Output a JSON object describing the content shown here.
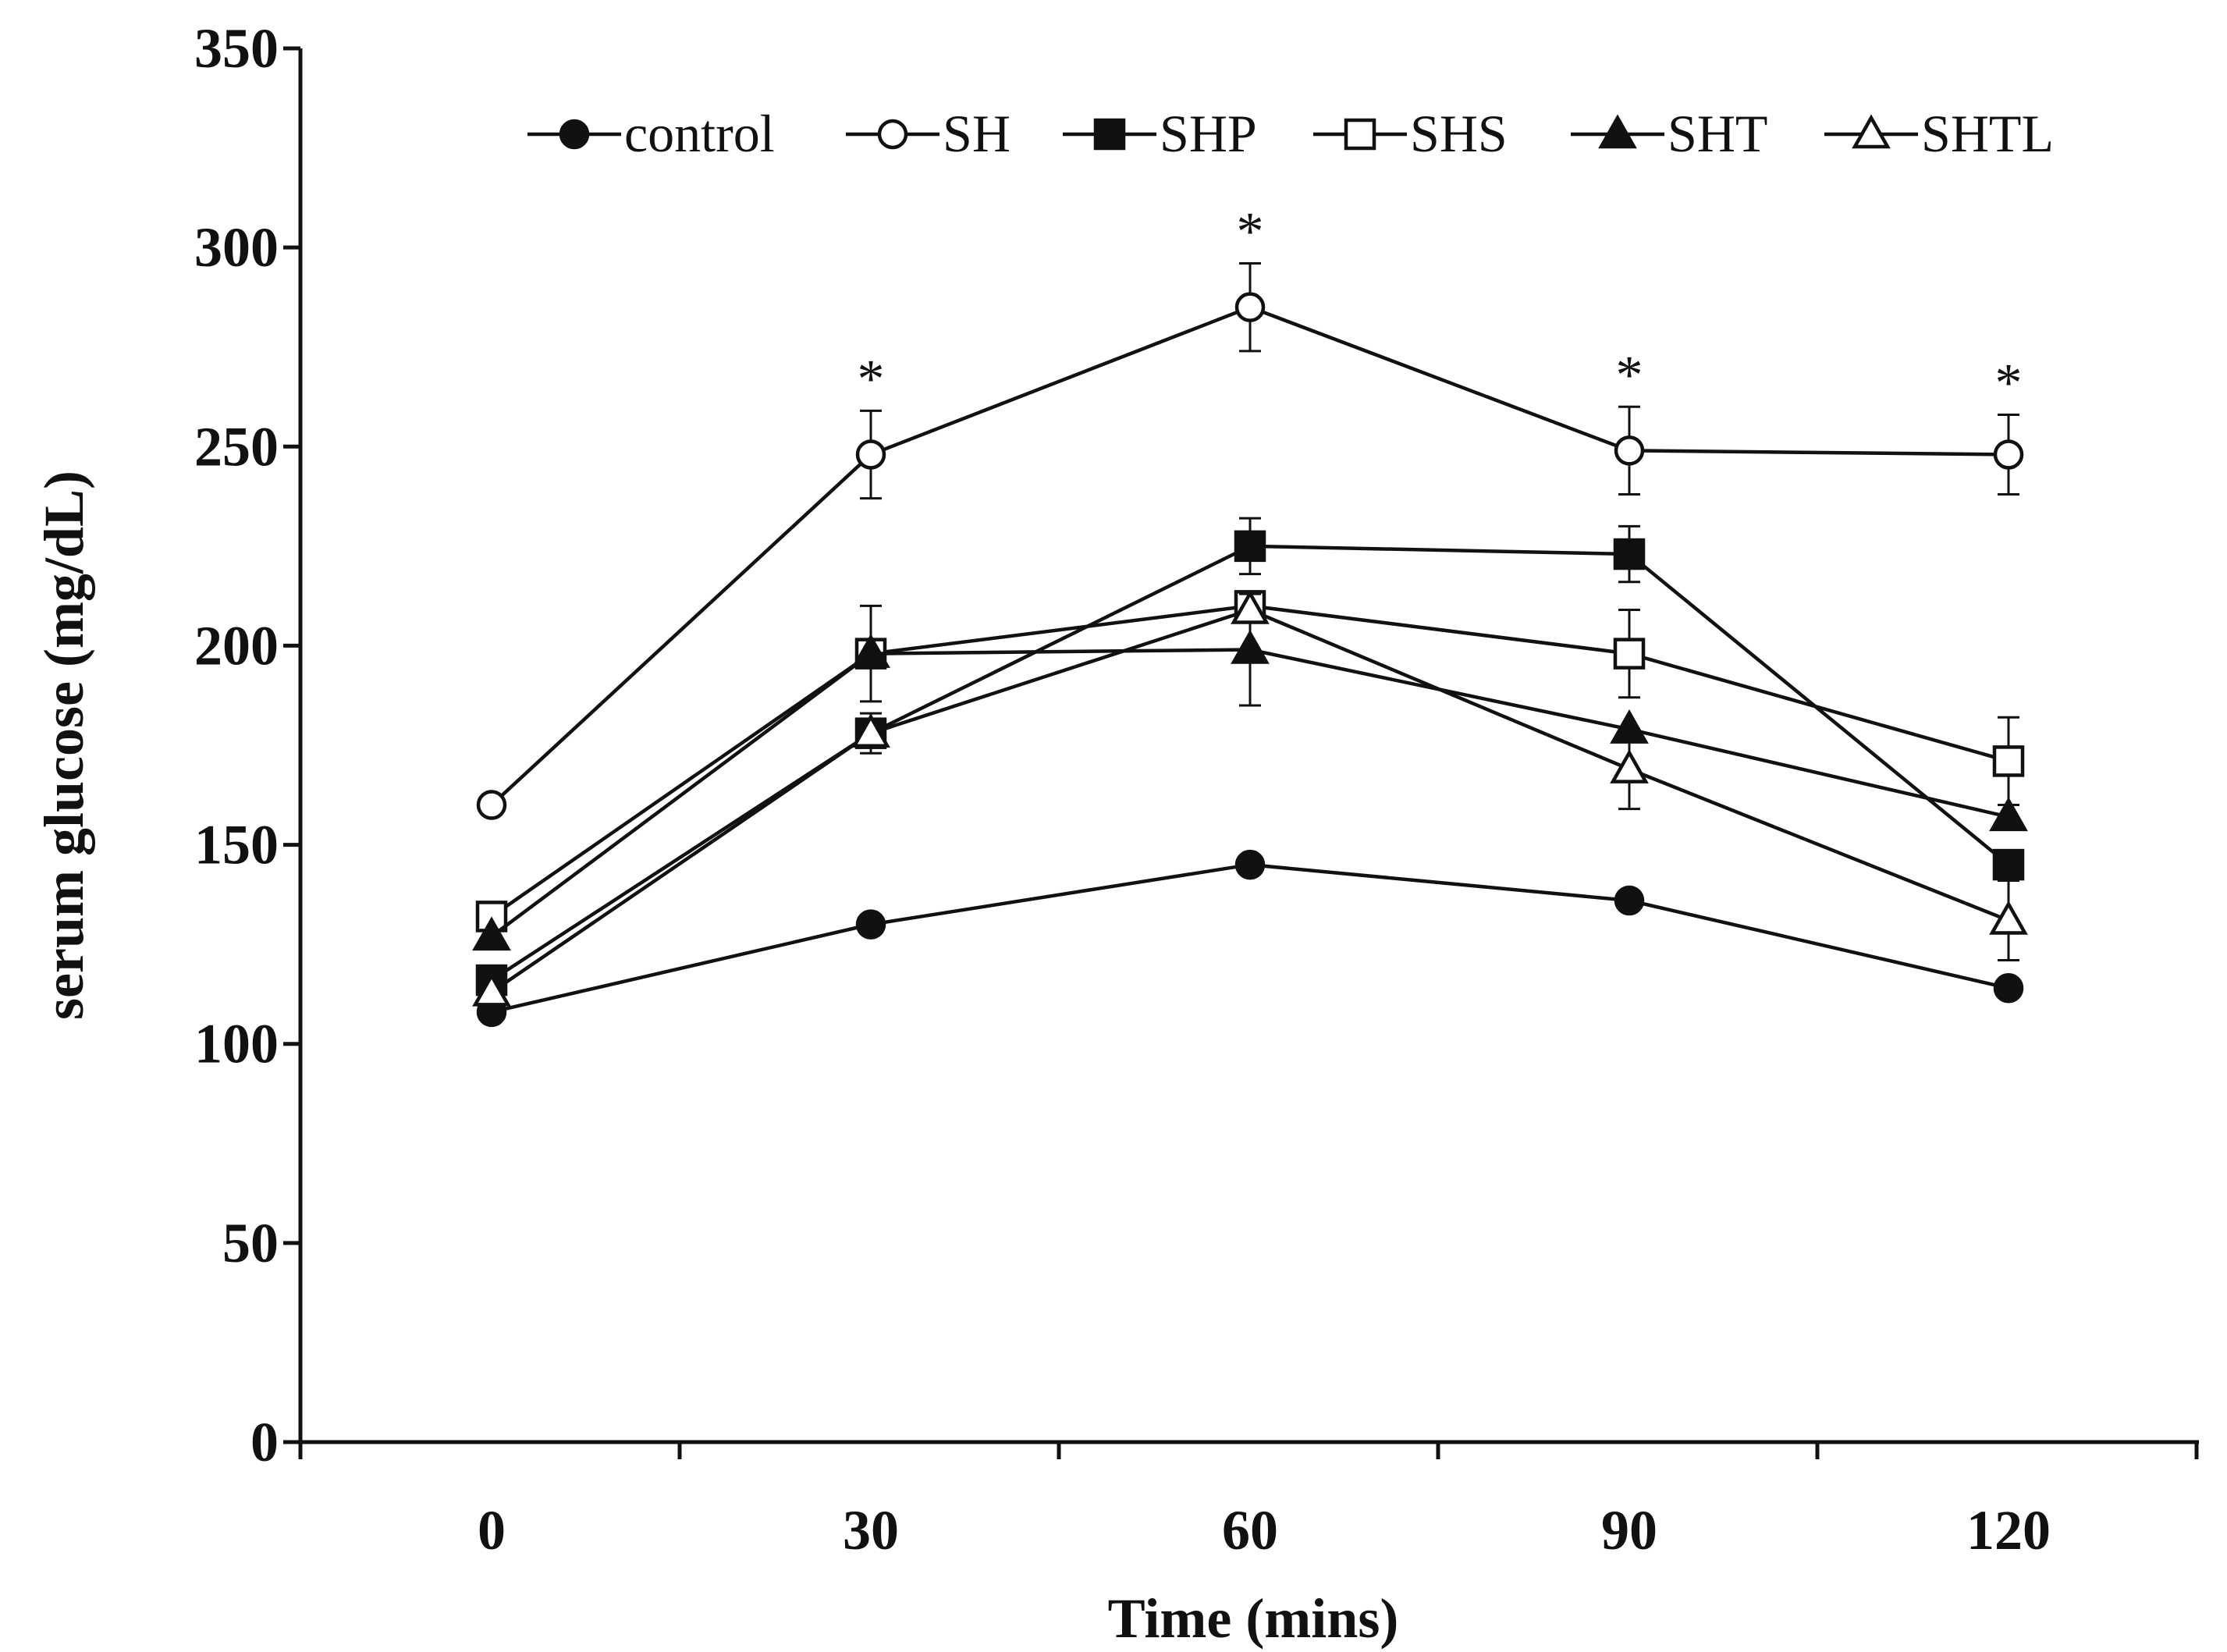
{
  "chart_data": {
    "type": "line",
    "title": "",
    "xlabel": "Time (mins)",
    "ylabel": "serum  glucose (mg/dL)",
    "categories": [
      "0",
      "30",
      "60",
      "90",
      "120"
    ],
    "x": [
      0,
      30,
      60,
      90,
      120
    ],
    "ylim": [
      0,
      350
    ],
    "yticks": [
      "0",
      "50",
      "100",
      "150",
      "200",
      "250",
      "300",
      "350"
    ],
    "legend_position": "top",
    "significance_marker": "*",
    "significance_at": [
      30,
      60,
      90,
      120
    ],
    "series": [
      {
        "name": "control",
        "marker": "filled-circle",
        "values": [
          108,
          130,
          145,
          136,
          114
        ],
        "errors": [
          0,
          0,
          0,
          0,
          0
        ]
      },
      {
        "name": "SH",
        "marker": "open-circle",
        "values": [
          160,
          248,
          285,
          249,
          248
        ],
        "errors": [
          0,
          11,
          11,
          11,
          10
        ]
      },
      {
        "name": "SHP",
        "marker": "filled-square",
        "values": [
          116,
          178,
          225,
          223,
          145
        ],
        "errors": [
          0,
          5,
          7,
          7,
          0
        ]
      },
      {
        "name": "SHS",
        "marker": "open-square",
        "values": [
          132,
          198,
          210,
          198,
          171
        ],
        "errors": [
          0,
          12,
          0,
          11,
          11
        ]
      },
      {
        "name": "SHT",
        "marker": "filled-triangle",
        "values": [
          127,
          198,
          199,
          179,
          157
        ],
        "errors": [
          0,
          0,
          14,
          0,
          0
        ]
      },
      {
        "name": "SHTL",
        "marker": "open-triangle",
        "values": [
          113,
          178,
          209,
          169,
          131
        ],
        "errors": [
          0,
          0,
          0,
          10,
          10
        ]
      }
    ]
  }
}
